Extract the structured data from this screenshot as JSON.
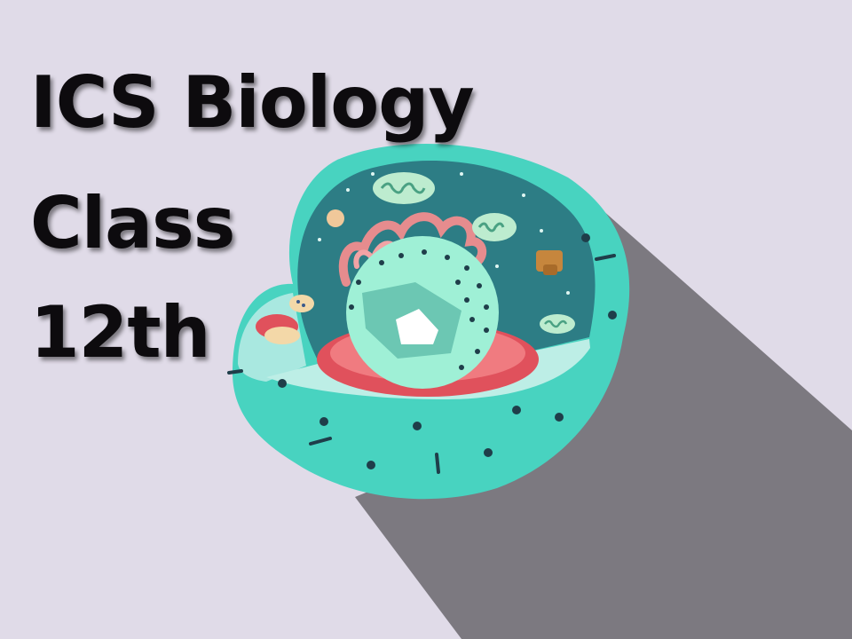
{
  "slide": {
    "title_lines": [
      "ICS Biology",
      "Class",
      "12th"
    ]
  },
  "colors": {
    "background": "#e0dbe8",
    "shadow": "#7c7980",
    "membrane": "#48d3c0",
    "cytoplasm": "#2d7d85",
    "nucleus": "#9ff0d6",
    "er_rough": "#e0515c",
    "golgi": "#e68c8e",
    "title_text": "#0d0b0e"
  },
  "illustration": {
    "icon": "animal-cell-icon"
  }
}
